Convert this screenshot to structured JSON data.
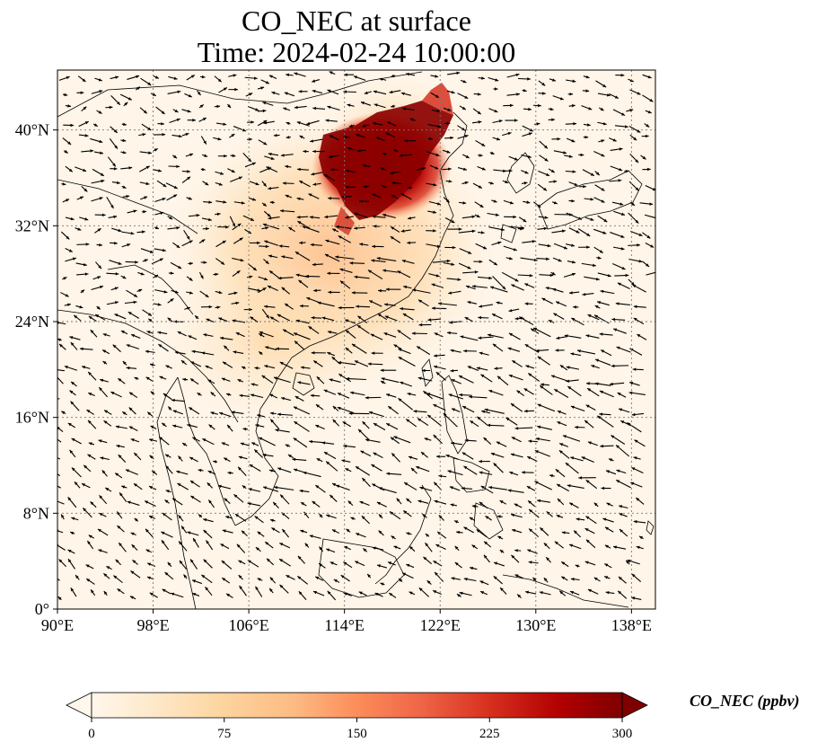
{
  "title": {
    "line1": "CO_NEC at surface",
    "line2": "Time: 2024-02-24 10:00:00"
  },
  "map": {
    "lon_range": [
      90,
      140
    ],
    "lat_range": [
      0,
      45
    ],
    "x_ticks": [
      "90°E",
      "98°E",
      "106°E",
      "114°E",
      "122°E",
      "130°E",
      "138°E"
    ],
    "x_tick_values": [
      90,
      98,
      106,
      114,
      122,
      130,
      138
    ],
    "y_ticks": [
      "0°",
      "8°N",
      "16°N",
      "24°N",
      "32°N",
      "40°N"
    ],
    "y_tick_values": [
      0,
      8,
      16,
      24,
      32,
      40
    ],
    "gridlines": true,
    "field": "CO_NEC",
    "overlay": "wind vectors (black arrows)",
    "hotspot": "North China Plain, values above 300 ppbv"
  },
  "colorbar": {
    "label": "CO_NEC (ppbv)",
    "ticks": [
      "0",
      "75",
      "150",
      "225",
      "300"
    ],
    "tick_values": [
      0,
      75,
      150,
      225,
      300
    ],
    "range": [
      0,
      300
    ],
    "extend": "both",
    "colormap": "OrRd",
    "colors": [
      "#fff7ec",
      "#fee8c8",
      "#fdd49e",
      "#fdbb84",
      "#fc8d59",
      "#ef6548",
      "#d7301f",
      "#b30000",
      "#7f0000"
    ]
  }
}
